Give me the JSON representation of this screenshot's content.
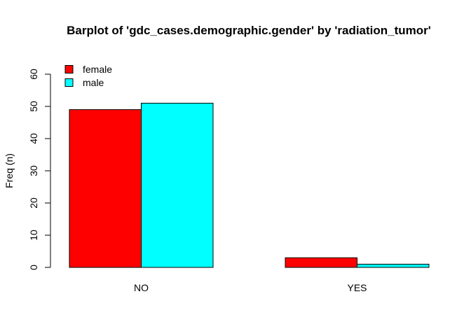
{
  "chart_data": {
    "type": "bar",
    "title": "Barplot of 'gdc_cases.demographic.gender' by 'radiation_tumor'",
    "xlabel": "",
    "ylabel": "Freq (n)",
    "categories": [
      "NO",
      "YES"
    ],
    "series": [
      {
        "name": "female",
        "color": "#FF0000",
        "values": [
          49,
          3
        ]
      },
      {
        "name": "male",
        "color": "#00FFFF",
        "values": [
          51,
          1
        ]
      }
    ],
    "ylim": [
      0,
      60
    ],
    "yticks": [
      "0",
      "10",
      "20",
      "30",
      "40",
      "50",
      "60"
    ],
    "grid": false,
    "legend_position": "top-left"
  }
}
